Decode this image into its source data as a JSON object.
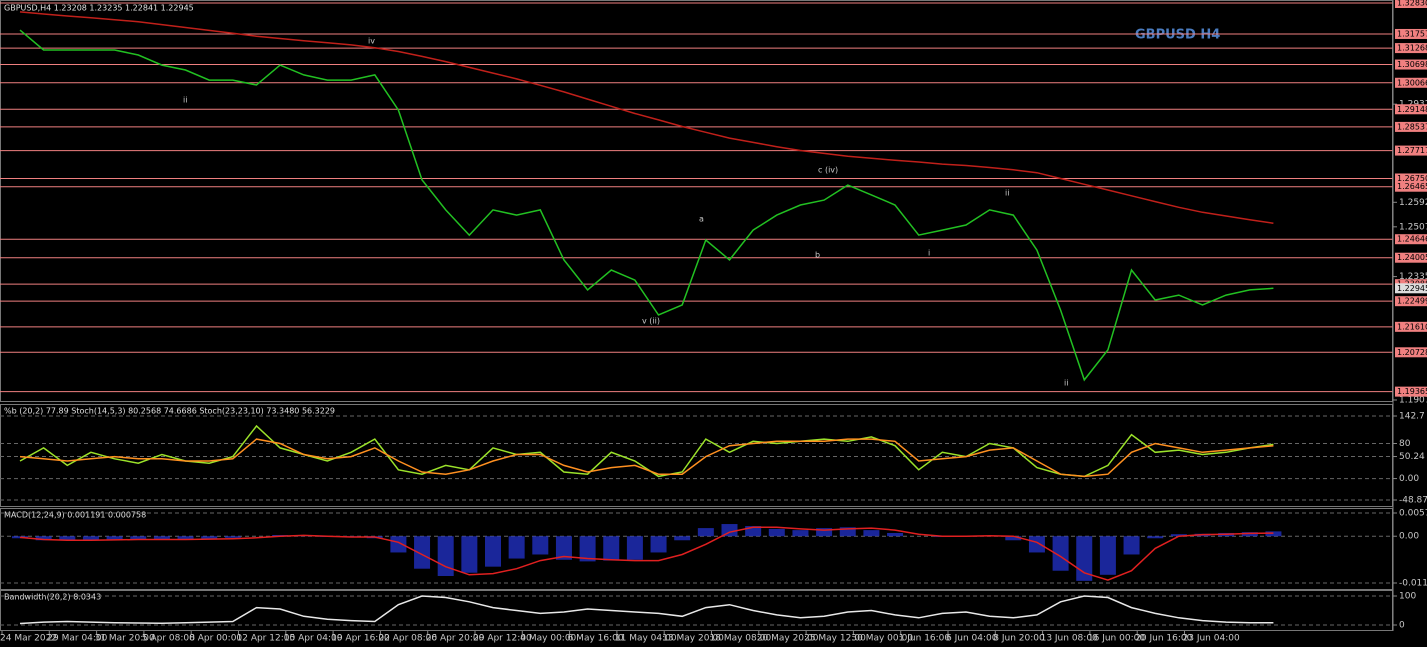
{
  "chart_data": [
    {
      "type": "line",
      "title": "GBPUSD H4",
      "header": "GBPUSD,H4  1.23208 1.23235 1.22841 1.22945",
      "categories": [
        "24 Mar 2022",
        null,
        "29 Mar 04:00",
        null,
        "31 Mar 20:00",
        null,
        "5 Apr 08:00",
        null,
        "8 Apr 00:00",
        null,
        "12 Apr 12:00",
        null,
        "15 Apr 04:00",
        null,
        "19 Apr 16:00",
        null,
        "22 Apr 08:00",
        null,
        "26 Apr 20:00",
        null,
        "29 Apr 12:00",
        null,
        "4 May 00:00",
        null,
        "6 May 16:00",
        null,
        "11 May 04:00",
        null,
        "13 May 20:00",
        null,
        "18 May 08:00",
        null,
        "20 May 20:00",
        null,
        "25 May 12:00",
        null,
        "30 May 00:00",
        null,
        "1 Jun 16:00",
        null,
        "6 Jun 04:00",
        null,
        "8 Jun 20:00",
        null,
        "13 Jun 08:00",
        null,
        "16 Jun 00:00",
        null,
        "20 Jun 16:00",
        null,
        "23 Jun 04:00",
        null,
        null,
        null
      ],
      "series": [
        {
          "color": "#22c022",
          "values": [
            1.3189,
            1.312,
            1.312,
            1.312,
            1.312,
            1.3103,
            1.3068,
            1.3051,
            1.3016,
            1.3016,
            1.2999,
            1.3068,
            1.3034,
            1.3016,
            1.3016,
            1.3034,
            1.2912,
            1.267,
            1.2566,
            1.2479,
            1.2566,
            1.2548,
            1.2566,
            1.2393,
            1.2289,
            1.2358,
            1.2323,
            1.2202,
            1.2237,
            1.2462,
            1.2393,
            1.2496,
            1.2548,
            1.2583,
            1.26,
            1.2652,
            1.2618,
            1.2583,
            1.2479,
            1.2496,
            1.2514,
            1.2566,
            1.2548,
            1.2427,
            1.2219,
            1.1977,
            1.2081,
            1.2358,
            1.2254,
            1.2271,
            1.2237,
            1.2271,
            1.2289,
            1.22945
          ]
        },
        {
          "color": "#c0201a",
          "values": [
            1.3252,
            1.3245,
            1.3238,
            1.3232,
            1.3225,
            1.3218,
            1.3208,
            1.3198,
            1.3188,
            1.3178,
            1.3168,
            1.316,
            1.3152,
            1.3145,
            1.3138,
            1.3128,
            1.3115,
            1.3098,
            1.308,
            1.306,
            1.304,
            1.302,
            1.2998,
            1.2975,
            1.295,
            1.2925,
            1.29,
            1.2878,
            1.2855,
            1.2835,
            1.2815,
            1.28,
            1.2785,
            1.2772,
            1.2762,
            1.2752,
            1.2745,
            1.2738,
            1.2732,
            1.2725,
            1.272,
            1.2713,
            1.2705,
            1.2695,
            1.2675,
            1.2655,
            1.2635,
            1.2615,
            1.2595,
            1.2575,
            1.2558,
            1.2545,
            1.2532,
            1.252
          ]
        }
      ],
      "ylim": [
        1.19075,
        1.3283
      ],
      "yticks": [
        {
          "value": 1.29325,
          "label": "1.29325"
        },
        {
          "value": 1.25925,
          "label": "1.25925"
        },
        {
          "value": 1.25075,
          "label": "1.25075"
        },
        {
          "value": 1.2335,
          "label": "1.23350"
        },
        {
          "value": 1.19075,
          "label": "1.19075"
        }
      ],
      "levels": [
        {
          "value": 1.3283,
          "label": "1.32830"
        },
        {
          "value": 1.31757,
          "label": "1.31757"
        },
        {
          "value": 1.31268,
          "label": "1.31268"
        },
        {
          "value": 1.30698,
          "label": "1.30698"
        },
        {
          "value": 1.30066,
          "label": "1.30066"
        },
        {
          "value": 1.29148,
          "label": "1.29148"
        },
        {
          "value": 1.28537,
          "label": "1.28537"
        },
        {
          "value": 1.27717,
          "label": "1.27717"
        },
        {
          "value": 1.2675,
          "label": "1.26750"
        },
        {
          "value": 1.26465,
          "label": "1.26465"
        },
        {
          "value": 1.24646,
          "label": "1.24646"
        },
        {
          "value": 1.24005,
          "label": "1.24005"
        },
        {
          "value": 1.23088,
          "label": "1.23088"
        },
        {
          "value": 1.22499,
          "label": "1.22499"
        },
        {
          "value": 1.2161,
          "label": "1.21610"
        },
        {
          "value": 1.20728,
          "label": "1.20728"
        },
        {
          "value": 1.19365,
          "label": "1.19365"
        }
      ],
      "level_color": "#f08080",
      "last": {
        "value": 1.22945,
        "label": "1.22945"
      },
      "annotations": [
        "iv",
        "ii",
        "c (iv)",
        "a",
        "b",
        "v (ii)",
        "i",
        "ii",
        "ii"
      ]
    },
    {
      "type": "line",
      "title": "%b (20,2) 77.89  Stoch(14,5,3) 80.2568 74.6686  Stoch(23,23,10) 73.3480 56.3229",
      "series": [
        {
          "color": "#9be22a",
          "values": [
            40,
            70,
            30,
            60,
            45,
            35,
            55,
            40,
            35,
            50,
            120,
            70,
            55,
            40,
            60,
            90,
            20,
            10,
            30,
            20,
            70,
            55,
            60,
            15,
            10,
            60,
            40,
            5,
            15,
            90,
            60,
            85,
            80,
            85,
            90,
            85,
            95,
            75,
            20,
            60,
            50,
            80,
            70,
            25,
            10,
            5,
            30,
            100,
            60,
            65,
            55,
            60,
            70,
            77.89
          ]
        },
        {
          "color": "#ff9020",
          "values": [
            50,
            45,
            40,
            45,
            50,
            45,
            45,
            40,
            40,
            45,
            90,
            80,
            55,
            45,
            50,
            70,
            40,
            15,
            10,
            20,
            40,
            55,
            55,
            30,
            15,
            25,
            30,
            10,
            10,
            50,
            75,
            80,
            85,
            85,
            85,
            90,
            90,
            85,
            40,
            45,
            50,
            65,
            70,
            40,
            10,
            5,
            10,
            60,
            80,
            70,
            60,
            65,
            70,
            74.6686
          ]
        }
      ],
      "ylim": [
        -48.87,
        142.7
      ],
      "yticks": [
        142.7,
        80,
        50.24,
        {
          "value": 0,
          "label": "0.00"
        },
        -48.87
      ]
    },
    {
      "type": "line",
      "title": "MACD(12,24,9) 0.001191 0.000758",
      "series": [
        {
          "color": "#2030c0",
          "style": "bar",
          "values": [
            -0.0005,
            -0.001,
            -0.001,
            -0.0009,
            -0.0008,
            -0.0008,
            -0.0008,
            -0.0007,
            -0.0006,
            -0.0004,
            0,
            0.0003,
            0.0001,
            -0.0002,
            -0.0002,
            -0.0005,
            -0.004,
            -0.008,
            -0.0098,
            -0.009,
            -0.0075,
            -0.0055,
            -0.0045,
            -0.0058,
            -0.0062,
            -0.006,
            -0.0058,
            -0.004,
            -0.001,
            0.002,
            0.003,
            0.0025,
            0.0018,
            0.0015,
            0.002,
            0.0022,
            0.0015,
            0.0008,
            0,
            -0.0002,
            0.0001,
            0,
            -0.001,
            -0.004,
            -0.0085,
            -0.011,
            -0.0095,
            -0.0045,
            -0.0005,
            0.0005,
            0.0006,
            0.0008,
            0.001,
            0.001191
          ]
        },
        {
          "color": "#e02020",
          "values": [
            -0.0003,
            -0.0008,
            -0.001,
            -0.001,
            -0.0009,
            -0.0008,
            -0.0008,
            -0.0008,
            -0.0007,
            -0.0006,
            -0.0004,
            0,
            0.0002,
            0,
            -0.0002,
            -0.0002,
            -0.0015,
            -0.0045,
            -0.0075,
            -0.0095,
            -0.0092,
            -0.008,
            -0.006,
            -0.005,
            -0.0055,
            -0.0058,
            -0.006,
            -0.006,
            -0.0045,
            -0.002,
            0.001,
            0.0022,
            0.0022,
            0.0018,
            0.0015,
            0.0018,
            0.002,
            0.0015,
            0.0005,
            0,
            0,
            0.0001,
            0,
            -0.0015,
            -0.005,
            -0.009,
            -0.0108,
            -0.0085,
            -0.003,
            0,
            0.0004,
            0.0005,
            0.0007,
            0.000758
          ]
        }
      ],
      "ylim": [
        -0.011523,
        0.005718
      ],
      "yticks": [
        0.005718,
        {
          "value": 0,
          "label": "0.00"
        },
        -0.011523
      ]
    },
    {
      "type": "line",
      "title": "Bandwidth(20,2) 8.0343",
      "series": [
        {
          "color": "#e8e8e8",
          "values": [
            5,
            10,
            12,
            10,
            8,
            7,
            6,
            8,
            10,
            12,
            60,
            55,
            30,
            20,
            15,
            12,
            70,
            100,
            95,
            80,
            60,
            50,
            40,
            45,
            55,
            50,
            45,
            40,
            30,
            60,
            70,
            50,
            35,
            25,
            30,
            45,
            50,
            35,
            25,
            40,
            45,
            30,
            25,
            35,
            80,
            100,
            95,
            60,
            40,
            25,
            15,
            10,
            8,
            8.0343
          ]
        }
      ],
      "ylim": [
        0,
        100
      ],
      "yticks": [
        100,
        0
      ]
    }
  ]
}
